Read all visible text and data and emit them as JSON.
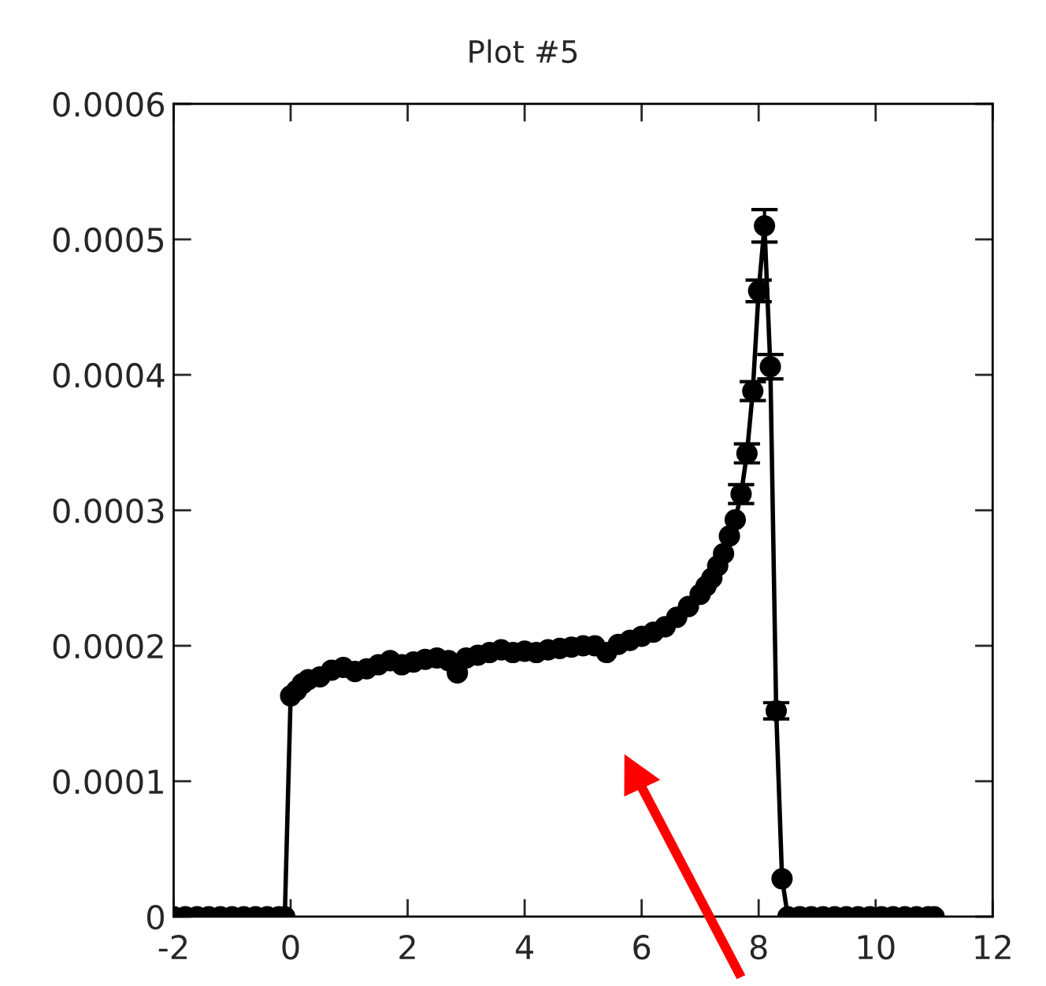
{
  "chart_data": {
    "type": "line",
    "title": "Plot #5",
    "x": [
      -2,
      -1.8,
      -1.6,
      -1.4,
      -1.2,
      -1,
      -0.8,
      -0.6,
      -0.4,
      -0.2,
      -0.1,
      0,
      0.1,
      0.2,
      0.3,
      0.5,
      0.7,
      0.9,
      1.1,
      1.3,
      1.5,
      1.7,
      1.9,
      2.1,
      2.3,
      2.5,
      2.7,
      2.85,
      3,
      3.2,
      3.4,
      3.6,
      3.8,
      4,
      4.2,
      4.4,
      4.6,
      4.8,
      5,
      5.2,
      5.4,
      5.6,
      5.8,
      6,
      6.2,
      6.4,
      6.6,
      6.8,
      7,
      7.1,
      7.2,
      7.3,
      7.4,
      7.5,
      7.6,
      7.7,
      7.8,
      7.9,
      8,
      8.1,
      8.2,
      8.3,
      8.4,
      8.5,
      8.7,
      8.9,
      9.1,
      9.3,
      9.5,
      9.7,
      9.9,
      10.1,
      10.3,
      10.5,
      10.7,
      10.9,
      11
    ],
    "series": [
      {
        "color": "#000000",
        "values": [
          0,
          0,
          0,
          0,
          0,
          0,
          0,
          0,
          0,
          0,
          0,
          0.000163,
          0.000167,
          0.000172,
          0.000175,
          0.000177,
          0.000182,
          0.000184,
          0.000181,
          0.000183,
          0.000186,
          0.000189,
          0.000186,
          0.000188,
          0.00019,
          0.000191,
          0.000189,
          0.00018,
          0.000191,
          0.000193,
          0.000195,
          0.000197,
          0.000195,
          0.000196,
          0.000195,
          0.000197,
          0.000198,
          0.000199,
          0.0002,
          0.0002,
          0.000195,
          0.000201,
          0.000204,
          0.000207,
          0.00021,
          0.000214,
          0.000221,
          0.000229,
          0.000238,
          0.000244,
          0.00025,
          0.000259,
          0.000268,
          0.000281,
          0.000293,
          0.000312,
          0.000342,
          0.000388,
          0.000462,
          0.00051,
          0.000406,
          0.000152,
          2.8e-05,
          0,
          0,
          0,
          0,
          0,
          0,
          0,
          0,
          0,
          0,
          0,
          0,
          0,
          0
        ],
        "errors": [
          null,
          null,
          null,
          null,
          null,
          null,
          null,
          null,
          null,
          null,
          null,
          null,
          null,
          null,
          null,
          null,
          null,
          null,
          null,
          null,
          null,
          null,
          null,
          null,
          null,
          null,
          null,
          null,
          null,
          null,
          null,
          null,
          null,
          null,
          null,
          null,
          null,
          null,
          null,
          null,
          null,
          null,
          null,
          null,
          null,
          null,
          null,
          null,
          null,
          null,
          null,
          null,
          null,
          null,
          null,
          7e-06,
          7e-06,
          7e-06,
          8e-06,
          1.2e-05,
          9e-06,
          6e-06,
          null,
          null,
          null,
          null,
          null,
          null,
          null,
          null,
          null,
          null,
          null,
          null,
          null,
          null,
          null
        ]
      }
    ],
    "xlim": [
      -2,
      12
    ],
    "xticks": [
      -2,
      0,
      2,
      4,
      6,
      8,
      10,
      12
    ],
    "ylim": [
      0,
      0.0006
    ],
    "yticks": [
      0,
      0.0001,
      0.0002,
      0.0003,
      0.0004,
      0.0005,
      0.0006
    ],
    "marker": "circle",
    "line_style": "solid",
    "grid": false,
    "legend": false
  }
}
